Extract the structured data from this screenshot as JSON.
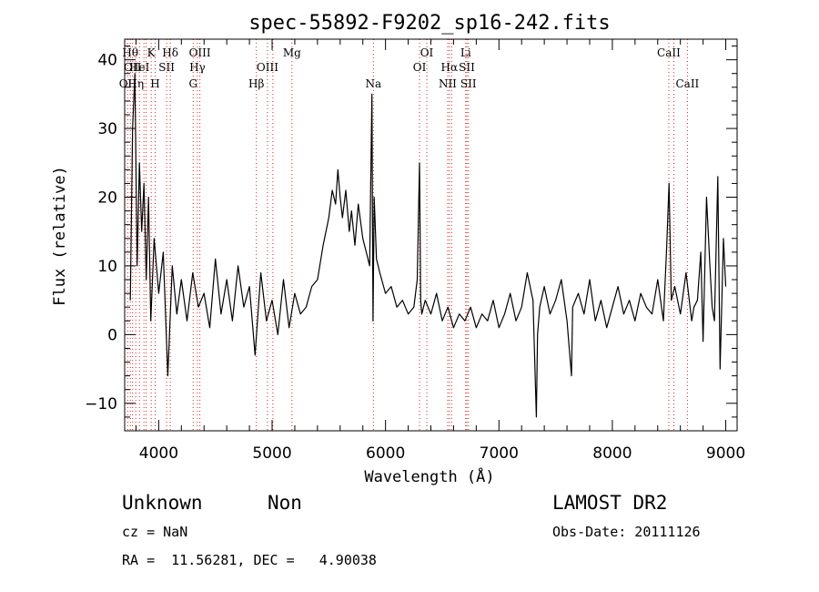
{
  "chart_data": {
    "type": "line",
    "title": "spec-55892-F9202_sp16-242.fits",
    "xlabel": "Wavelength (Å)",
    "ylabel": "Flux (relative)",
    "xlim": [
      3700,
      9100
    ],
    "ylim": [
      -14,
      43
    ],
    "x_ticks": [
      4000,
      5000,
      6000,
      7000,
      8000,
      9000
    ],
    "y_ticks": [
      -10,
      0,
      10,
      20,
      30,
      40
    ],
    "grid": false,
    "series": [
      {
        "style": "black solid line",
        "x": [
          3750,
          3770,
          3790,
          3810,
          3830,
          3850,
          3870,
          3890,
          3910,
          3930,
          3960,
          4000,
          4040,
          4080,
          4120,
          4160,
          4200,
          4250,
          4300,
          4350,
          4400,
          4450,
          4500,
          4550,
          4600,
          4650,
          4700,
          4750,
          4800,
          4850,
          4900,
          4950,
          5000,
          5050,
          5100,
          5150,
          5200,
          5250,
          5300,
          5350,
          5400,
          5450,
          5500,
          5530,
          5560,
          5580,
          5600,
          5620,
          5650,
          5680,
          5700,
          5730,
          5760,
          5800,
          5830,
          5860,
          5880,
          5890,
          5900,
          5920,
          5950,
          6000,
          6050,
          6100,
          6150,
          6200,
          6250,
          6280,
          6300,
          6310,
          6320,
          6350,
          6400,
          6450,
          6500,
          6550,
          6600,
          6650,
          6700,
          6750,
          6800,
          6850,
          6900,
          6950,
          7000,
          7050,
          7100,
          7150,
          7200,
          7250,
          7300,
          7330,
          7340,
          7360,
          7400,
          7450,
          7500,
          7550,
          7600,
          7640,
          7650,
          7700,
          7750,
          7800,
          7850,
          7900,
          7950,
          8000,
          8050,
          8100,
          8150,
          8200,
          8250,
          8300,
          8350,
          8400,
          8450,
          8480,
          8500,
          8520,
          8550,
          8600,
          8650,
          8700,
          8720,
          8750,
          8780,
          8800,
          8830,
          8860,
          8880,
          8900,
          8930,
          8950,
          8980,
          9000
        ],
        "y": [
          5,
          30,
          38,
          10,
          25,
          15,
          22,
          8,
          20,
          2,
          14,
          6,
          12,
          -6,
          10,
          3,
          8,
          2,
          9,
          4,
          6,
          1,
          11,
          3,
          8,
          2,
          10,
          4,
          7,
          -3,
          9,
          2,
          5,
          0,
          8,
          1,
          6,
          3,
          4,
          7,
          8,
          13,
          17,
          21,
          19,
          24,
          20,
          17,
          21,
          15,
          18,
          13,
          19,
          14,
          12,
          10,
          35,
          2,
          20,
          11,
          9,
          6,
          7,
          4,
          5,
          3,
          4,
          8,
          25,
          5,
          3,
          5,
          3,
          6,
          2,
          4,
          1,
          3,
          2,
          4,
          1,
          3,
          2,
          5,
          1,
          3,
          6,
          2,
          4,
          9,
          5,
          -12,
          0,
          4,
          7,
          3,
          5,
          8,
          2,
          -6,
          4,
          6,
          3,
          8,
          2,
          5,
          1,
          4,
          7,
          3,
          5,
          2,
          6,
          4,
          3,
          8,
          2,
          13,
          22,
          5,
          7,
          3,
          9,
          2,
          4,
          5,
          12,
          -1,
          20,
          10,
          4,
          2,
          23,
          -5,
          14,
          7
        ]
      }
    ],
    "line_markers": {
      "style": "red dotted vertical lines",
      "lines": [
        {
          "x": 3727,
          "label": "OII",
          "row": 3
        },
        {
          "x": 3750,
          "label": "Hθ",
          "row": 1
        },
        {
          "x": 3770,
          "label": "OII",
          "row": 2
        },
        {
          "x": 3798,
          "label": "Hη",
          "row": 3
        },
        {
          "x": 3830,
          "label": "HeI",
          "row": 2
        },
        {
          "x": 3870,
          "label": "",
          "row": 0
        },
        {
          "x": 3889,
          "label": "",
          "row": 0
        },
        {
          "x": 3934,
          "label": "K",
          "row": 1
        },
        {
          "x": 3969,
          "label": "H",
          "row": 3
        },
        {
          "x": 4070,
          "label": "SII",
          "row": 2
        },
        {
          "x": 4102,
          "label": "Hδ",
          "row": 1
        },
        {
          "x": 4304,
          "label": "G",
          "row": 3
        },
        {
          "x": 4341,
          "label": "Hγ",
          "row": 2
        },
        {
          "x": 4363,
          "label": "OIII",
          "row": 1
        },
        {
          "x": 4861,
          "label": "Hβ",
          "row": 3
        },
        {
          "x": 4959,
          "label": "OIII",
          "row": 2
        },
        {
          "x": 5007,
          "label": "",
          "row": 0
        },
        {
          "x": 5175,
          "label": "Mg",
          "row": 1
        },
        {
          "x": 5893,
          "label": "Na",
          "row": 3
        },
        {
          "x": 6300,
          "label": "OI",
          "row": 2
        },
        {
          "x": 6364,
          "label": "OI",
          "row": 1
        },
        {
          "x": 6548,
          "label": "NII",
          "row": 3
        },
        {
          "x": 6563,
          "label": "Hα",
          "row": 2
        },
        {
          "x": 6583,
          "label": "",
          "row": 0
        },
        {
          "x": 6707,
          "label": "Li",
          "row": 1
        },
        {
          "x": 6717,
          "label": "SII",
          "row": 2
        },
        {
          "x": 6731,
          "label": "SII",
          "row": 3
        },
        {
          "x": 8498,
          "label": "CaII",
          "row": 1
        },
        {
          "x": 8542,
          "label": "",
          "row": 0
        },
        {
          "x": 8662,
          "label": "CaII",
          "row": 3
        }
      ]
    }
  },
  "footer": {
    "class_label": "Unknown",
    "subclass_label": "Non",
    "survey": "LAMOST DR2",
    "cz": "cz = NaN",
    "obs_date": "Obs-Date: 20111126",
    "coords": "RA =  11.56281, DEC =   4.90038"
  }
}
